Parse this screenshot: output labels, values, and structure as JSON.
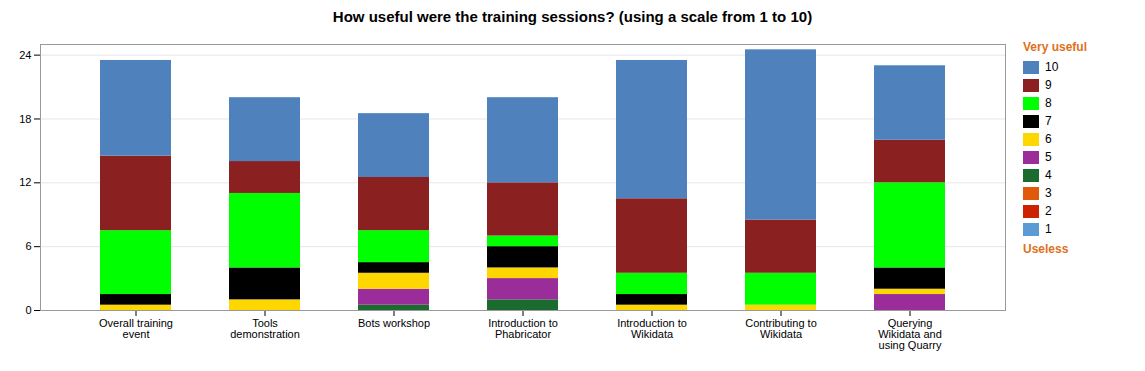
{
  "chart_data": {
    "type": "bar",
    "title": "How useful were the training sessions? (using a scale from 1 to 10)",
    "categories": [
      "Overall training\nevent",
      "Tools\ndemonstration",
      "Bots workshop",
      "Introduction to\nPhabricator",
      "Introduction to\nWikidata",
      "Contributing to\nWikidata",
      "Querying\nWikidata and\nusing Quarry"
    ],
    "series": [
      {
        "name": "1",
        "color": "#5B9BD5",
        "values": [
          0,
          0,
          0,
          0,
          0,
          0,
          0
        ]
      },
      {
        "name": "2",
        "color": "#CC2200",
        "values": [
          0,
          0,
          0,
          0,
          0,
          0,
          0
        ]
      },
      {
        "name": "3",
        "color": "#E05A0A",
        "values": [
          0,
          0,
          0,
          0,
          0,
          0,
          0
        ]
      },
      {
        "name": "4",
        "color": "#1B6B2F",
        "values": [
          0,
          0,
          0.5,
          1,
          0,
          0,
          0
        ]
      },
      {
        "name": "5",
        "color": "#9B2D9B",
        "values": [
          0,
          0,
          1.5,
          2,
          0,
          0,
          1.5
        ]
      },
      {
        "name": "6",
        "color": "#FFD700",
        "values": [
          0.5,
          1,
          1.5,
          1,
          0.5,
          0.5,
          0.5
        ]
      },
      {
        "name": "7",
        "color": "#000000",
        "values": [
          1,
          3,
          1,
          2,
          1,
          0,
          2
        ]
      },
      {
        "name": "8",
        "color": "#00FF00",
        "values": [
          6,
          7,
          3,
          1,
          2,
          3,
          8
        ]
      },
      {
        "name": "9",
        "color": "#8B2020",
        "values": [
          7,
          3,
          5,
          5,
          7,
          5,
          4
        ]
      },
      {
        "name": "10",
        "color": "#4F81BD",
        "values": [
          9,
          6,
          6,
          8,
          13,
          16,
          7
        ]
      }
    ],
    "stacked": true,
    "ylim": [
      0,
      25
    ],
    "yticks": [
      0,
      6,
      12,
      18,
      24
    ],
    "grid": true,
    "legend": "right",
    "annotations": [
      {
        "text": "Very useful",
        "color": "#E07020"
      },
      {
        "text": "Useless",
        "color": "#E07020"
      }
    ]
  }
}
